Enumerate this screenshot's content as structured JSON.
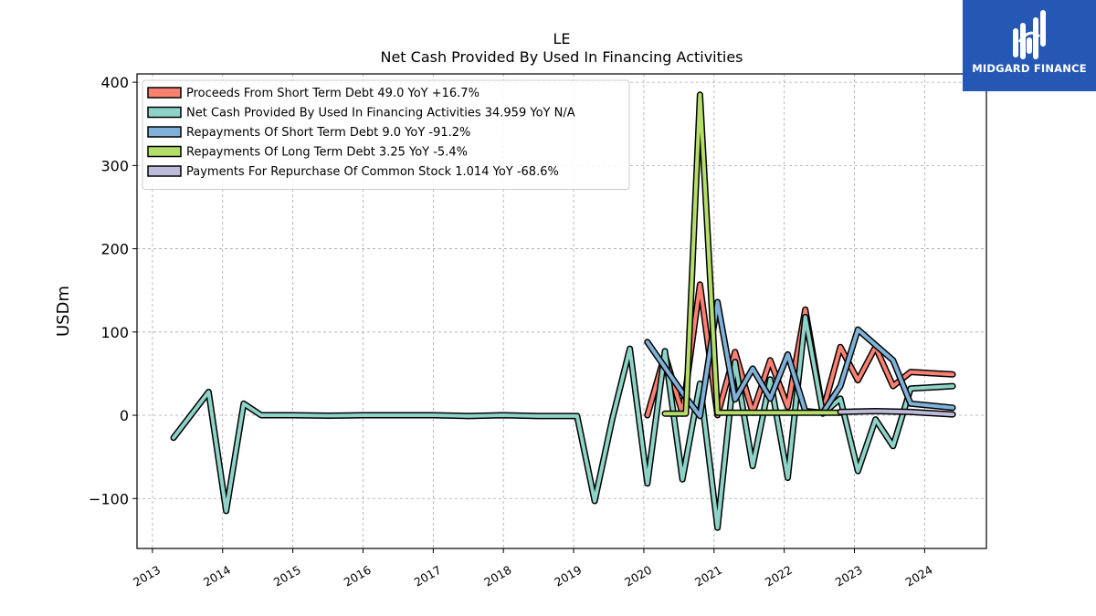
{
  "brand": {
    "logo_text": "MIDGARD FINANCE",
    "logo_color": "#2458b4"
  },
  "chart_data": {
    "type": "line",
    "title": "LE",
    "subtitle": "Net Cash Provided By Used In Financing Activities",
    "ylabel": "USDm",
    "xlabel": "",
    "xlim": [
      2012.78,
      2024.88
    ],
    "ylim": [
      -160,
      410
    ],
    "xticks": [
      2013,
      2014,
      2015,
      2016,
      2017,
      2018,
      2019,
      2020,
      2021,
      2022,
      2023,
      2024
    ],
    "yticks": [
      -100,
      0,
      100,
      200,
      300,
      400
    ],
    "grid": true,
    "legend_position": "top-left",
    "series": [
      {
        "name": "Proceeds From Short Term Debt",
        "legend_label": "Proceeds From Short Term Debt  49.0 YoY +16.7%",
        "color": "#fa8072",
        "points": [
          [
            2020.05,
            0
          ],
          [
            2020.3,
            73
          ],
          [
            2020.55,
            2
          ],
          [
            2020.8,
            157
          ],
          [
            2021.05,
            0
          ],
          [
            2021.3,
            76
          ],
          [
            2021.55,
            3
          ],
          [
            2021.8,
            66
          ],
          [
            2022.05,
            10
          ],
          [
            2022.3,
            127
          ],
          [
            2022.55,
            5
          ],
          [
            2022.8,
            82
          ],
          [
            2023.05,
            42
          ],
          [
            2023.3,
            82
          ],
          [
            2023.55,
            35
          ],
          [
            2023.8,
            52
          ],
          [
            2024.4,
            49
          ]
        ]
      },
      {
        "name": "Net Cash Provided By Used In Financing Activities",
        "legend_label": "Net Cash Provided By Used In Financing Activities  34.959 YoY N/A",
        "color": "#8dd3c7",
        "points": [
          [
            2013.3,
            -27
          ],
          [
            2013.8,
            28
          ],
          [
            2014.05,
            -115
          ],
          [
            2014.3,
            14
          ],
          [
            2014.55,
            0
          ],
          [
            2015,
            0
          ],
          [
            2015.5,
            -0.5
          ],
          [
            2016,
            0
          ],
          [
            2016.5,
            0
          ],
          [
            2017,
            0
          ],
          [
            2017.5,
            -1
          ],
          [
            2018,
            0
          ],
          [
            2018.5,
            -1
          ],
          [
            2019.05,
            -1
          ],
          [
            2019.3,
            -103
          ],
          [
            2019.55,
            -5
          ],
          [
            2019.8,
            80
          ],
          [
            2020.05,
            -82
          ],
          [
            2020.3,
            77
          ],
          [
            2020.55,
            -77
          ],
          [
            2020.8,
            38
          ],
          [
            2021.05,
            -135
          ],
          [
            2021.3,
            64
          ],
          [
            2021.55,
            -61
          ],
          [
            2021.8,
            43
          ],
          [
            2022.05,
            -75
          ],
          [
            2022.3,
            118
          ],
          [
            2022.55,
            2
          ],
          [
            2022.8,
            20
          ],
          [
            2023.05,
            -67
          ],
          [
            2023.3,
            -5
          ],
          [
            2023.55,
            -37
          ],
          [
            2023.8,
            32
          ],
          [
            2024.4,
            35
          ]
        ]
      },
      {
        "name": "Repayments Of Short Term Debt",
        "legend_label": "Repayments Of Short Term Debt  9.0 YoY -91.2%",
        "color": "#7fb1d9",
        "points": [
          [
            2020.05,
            88
          ],
          [
            2020.55,
            27
          ],
          [
            2020.8,
            -1
          ],
          [
            2021.05,
            136
          ],
          [
            2021.3,
            19
          ],
          [
            2021.55,
            56
          ],
          [
            2021.8,
            20
          ],
          [
            2022.05,
            73
          ],
          [
            2022.3,
            5
          ],
          [
            2022.55,
            3
          ],
          [
            2022.8,
            35
          ],
          [
            2023.05,
            103
          ],
          [
            2023.55,
            66
          ],
          [
            2023.8,
            14
          ],
          [
            2024.4,
            9
          ]
        ]
      },
      {
        "name": "Repayments Of Long Term Debt",
        "legend_label": "Repayments Of Long Term Debt  3.25 YoY -5.4%",
        "color": "#b3de69",
        "points": [
          [
            2020.3,
            2
          ],
          [
            2020.6,
            2
          ],
          [
            2020.8,
            385
          ],
          [
            2021.05,
            3
          ],
          [
            2022.8,
            3
          ]
        ]
      },
      {
        "name": "Payments For Repurchase Of Common Stock",
        "legend_label": "Payments For Repurchase Of Common Stock  1.014 YoY -68.6%",
        "color": "#bebada",
        "points": [
          [
            2022.8,
            4
          ],
          [
            2023.3,
            5
          ],
          [
            2023.8,
            4
          ],
          [
            2024.4,
            1
          ]
        ]
      }
    ]
  }
}
